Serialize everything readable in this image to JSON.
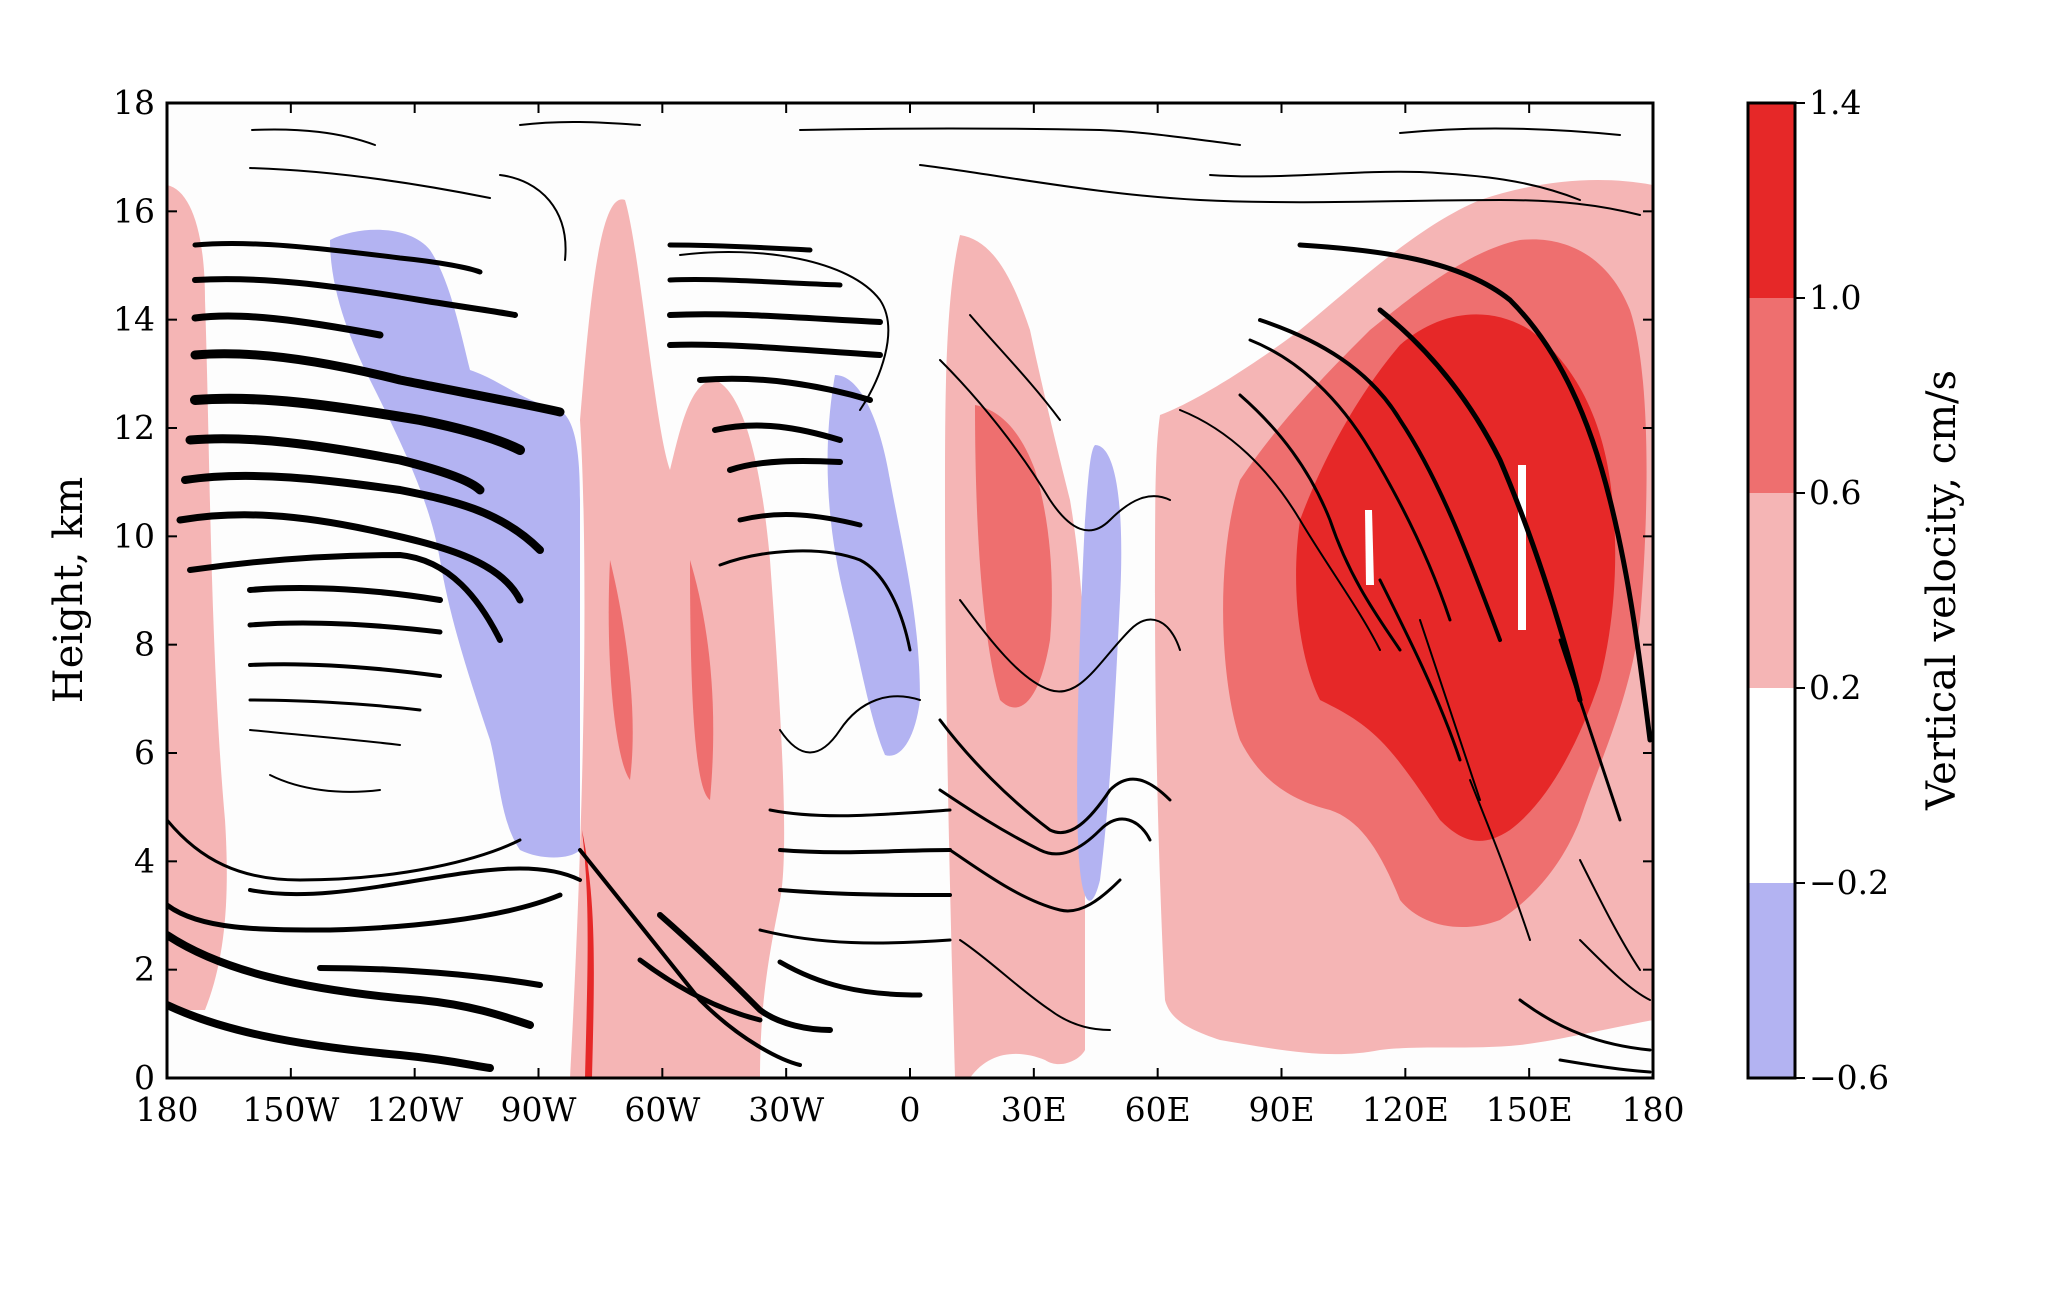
{
  "chart_data": {
    "type": "contour-streamline",
    "title": "",
    "xlabel": "",
    "ylabel": "Height, km",
    "colorbar_label": "Vertical velocity, cm/s",
    "x_ticks": [
      "180",
      "150W",
      "120W",
      "90W",
      "60W",
      "30W",
      "0",
      "30E",
      "60E",
      "90E",
      "120E",
      "150E",
      "180"
    ],
    "y_ticks": [
      "0",
      "2",
      "4",
      "6",
      "8",
      "10",
      "12",
      "14",
      "16",
      "18"
    ],
    "xlim": [
      -180,
      180
    ],
    "ylim": [
      0,
      18
    ],
    "colorbar_ticks": [
      "−0.6",
      "−0.2",
      "0.2",
      "0.6",
      "1.0",
      "1.4"
    ],
    "colorbar_levels": [
      -0.6,
      -0.2,
      0.2,
      0.6,
      1.0,
      1.4
    ],
    "colors": {
      "neg_0.6_to_0.2": "#b3b3f2",
      "neutral": "#ffffff",
      "pos_0.2_to_0.6": "#f5b5b5",
      "pos_0.6_to_1.0": "#ee6f6f",
      "pos_1.0_to_1.4": "#e62828"
    },
    "grid": false
  }
}
